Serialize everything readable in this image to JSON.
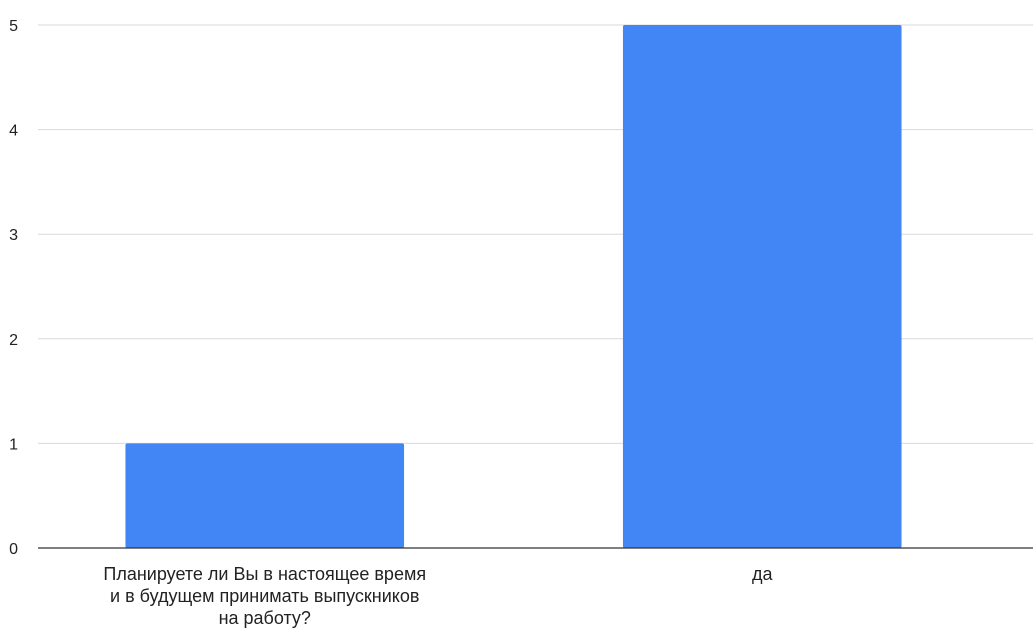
{
  "chart_data": {
    "type": "bar",
    "title": "",
    "xlabel": "",
    "ylabel": "",
    "categories": [
      [
        "Планируете ли Вы в настоящее время",
        "и в будущем принимать выпускников",
        "на работу?"
      ],
      [
        "да"
      ]
    ],
    "values": [
      1,
      5
    ],
    "ylim": [
      0,
      5
    ],
    "yticks": [
      "0",
      "1",
      "2",
      "3",
      "4",
      "5"
    ],
    "grid": true,
    "legend": "none",
    "colors": {
      "bar": "#4285f4",
      "grid": "#d9d9d9",
      "axis": "#333333",
      "text": "#222222"
    }
  }
}
